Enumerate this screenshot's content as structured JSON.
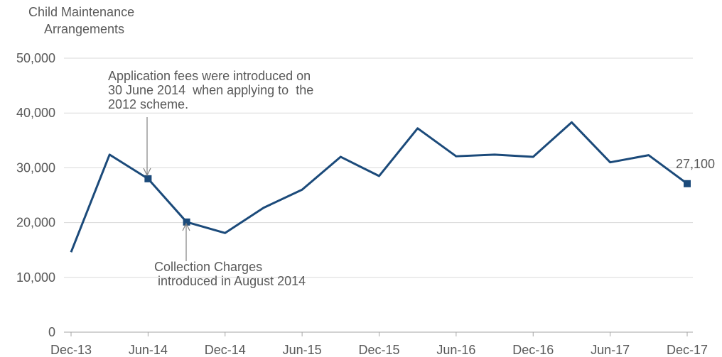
{
  "chart_data": {
    "type": "line",
    "y_label": [
      "Child Maintenance",
      "Arrangements"
    ],
    "categories": [
      "Dec-13",
      null,
      "Jun-14",
      null,
      "Dec-14",
      null,
      "Jun-15",
      null,
      "Dec-15",
      null,
      "Jun-16",
      null,
      "Dec-16",
      null,
      "Jun-17",
      null,
      "Dec-17"
    ],
    "series": [
      {
        "name": "Child Maintenance Arrangements",
        "color": "#1b4a7a",
        "values": [
          14600,
          32400,
          28000,
          20100,
          18100,
          22700,
          26000,
          32000,
          28500,
          37200,
          32100,
          32400,
          32000,
          38300,
          31000,
          32300,
          27100
        ],
        "value_labels": [
          null,
          null,
          null,
          null,
          null,
          null,
          null,
          null,
          null,
          null,
          null,
          null,
          null,
          null,
          null,
          null,
          "27,100"
        ],
        "markers": [
          2,
          3,
          16
        ]
      }
    ],
    "ylim": [
      0,
      50000
    ],
    "yticks": [
      0,
      {
        "value": 10000,
        "label": "10,000"
      },
      {
        "value": 20000,
        "label": "20,000"
      },
      {
        "value": 30000,
        "label": "30,000"
      },
      {
        "value": 40000,
        "label": "40,000"
      },
      {
        "value": 50000,
        "label": "50,000"
      }
    ],
    "grid": true,
    "annotations": [
      {
        "lines": [
          "Application fees were introduced on",
          "30 June 2014  when applying to  the",
          "2012 scheme."
        ]
      },
      {
        "lines": [
          "Collection Charges",
          " introduced in August 2014"
        ]
      }
    ]
  }
}
